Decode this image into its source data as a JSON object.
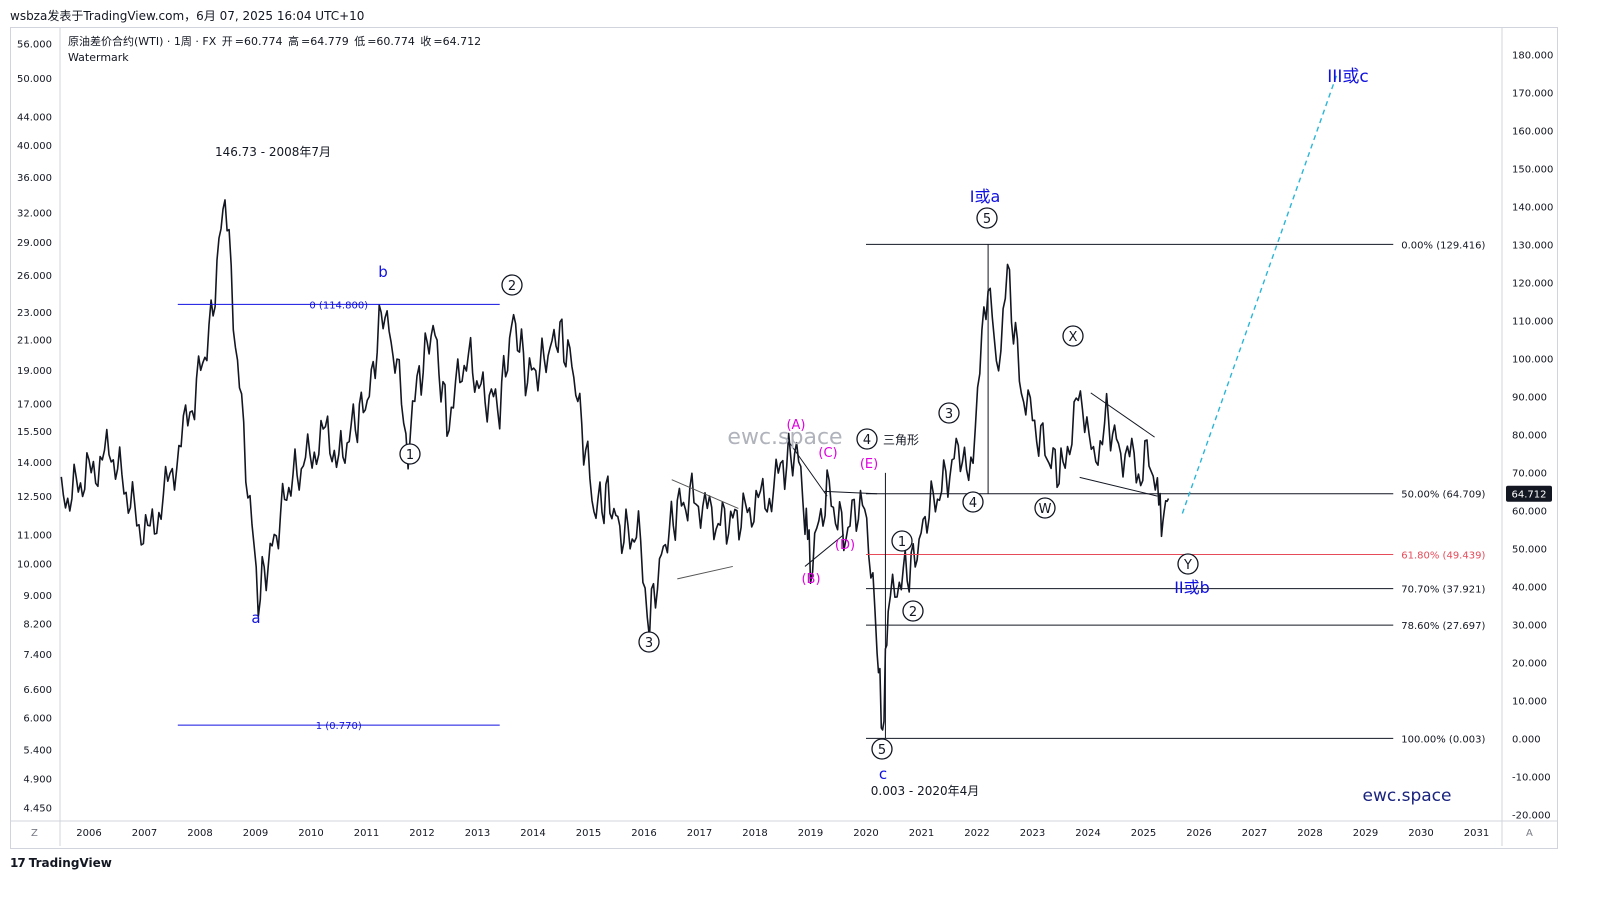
{
  "header": {
    "publisher_line": "wsbza发表于TradingView.com，6月 07, 2025 16:04 UTC+10"
  },
  "legend": {
    "symbol": "原油差价合约(WTI) · 1周 · FX",
    "open_label": "开",
    "open": "=60.774",
    "high_label": "高",
    "high": "=64.779",
    "low_label": "低",
    "low": "=60.774",
    "close_label": "收",
    "close": "=64.712",
    "watermark": "Watermark"
  },
  "footer": {
    "brand_logo": "17",
    "brand_name": "TradingView",
    "left_corner": "Z",
    "right_corner": "A"
  },
  "colors": {
    "price": "#131722",
    "wave_blue": "#1010e0",
    "magenta": "#e000e0",
    "fib_red": "#e64b5a",
    "projection": "#29b6d8",
    "price_badge": "#131722"
  },
  "chart_data": {
    "type": "line",
    "series": [
      {
        "values": [
          [
            2005.5,
            12.2
          ],
          [
            2006.0,
            13.5
          ],
          [
            2006.4,
            14.5
          ],
          [
            2006.9,
            11.4
          ],
          [
            2007.1,
            11.0
          ],
          [
            2007.5,
            13.5
          ],
          [
            2007.9,
            17.5
          ],
          [
            2008.2,
            22.0
          ],
          [
            2008.45,
            34.5
          ],
          [
            2008.6,
            23.0
          ],
          [
            2008.9,
            12.0
          ],
          [
            2009.05,
            9.0
          ],
          [
            2009.3,
            10.5
          ],
          [
            2009.6,
            13.0
          ],
          [
            2009.9,
            14.0
          ],
          [
            2010.3,
            15.5
          ],
          [
            2010.5,
            14.0
          ],
          [
            2010.8,
            16.0
          ],
          [
            2011.05,
            17.5
          ],
          [
            2011.3,
            23.5
          ],
          [
            2011.55,
            19.0
          ],
          [
            2011.75,
            14.8
          ],
          [
            2011.95,
            18.5
          ],
          [
            2012.2,
            22.0
          ],
          [
            2012.45,
            16.0
          ],
          [
            2012.8,
            20.0
          ],
          [
            2013.1,
            17.5
          ],
          [
            2013.4,
            17.0
          ],
          [
            2013.65,
            22.5
          ],
          [
            2013.9,
            18.5
          ],
          [
            2014.2,
            19.5
          ],
          [
            2014.45,
            21.5
          ],
          [
            2014.7,
            19.5
          ],
          [
            2014.95,
            14.5
          ],
          [
            2015.1,
            12.0
          ],
          [
            2015.35,
            12.5
          ],
          [
            2015.6,
            11.0
          ],
          [
            2015.9,
            11.0
          ],
          [
            2016.1,
            8.3
          ],
          [
            2016.35,
            10.5
          ],
          [
            2016.6,
            12.0
          ],
          [
            2016.9,
            12.5
          ],
          [
            2017.3,
            11.5
          ],
          [
            2017.6,
            11.5
          ],
          [
            2017.9,
            12.0
          ],
          [
            2018.3,
            12.6
          ],
          [
            2018.5,
            13.8
          ],
          [
            2018.75,
            14.5
          ],
          [
            2018.9,
            12.0
          ],
          [
            2019.0,
            10.0
          ],
          [
            2019.3,
            12.8
          ],
          [
            2019.6,
            11.0
          ],
          [
            2019.9,
            12.3
          ],
          [
            2020.05,
            11.0
          ],
          [
            2020.2,
            7.5
          ],
          [
            2020.3,
            5.7
          ],
          [
            2020.4,
            8.5
          ],
          [
            2020.6,
            9.5
          ],
          [
            2020.85,
            10.0
          ],
          [
            2021.1,
            11.8
          ],
          [
            2021.4,
            13.0
          ],
          [
            2021.7,
            14.8
          ],
          [
            2021.85,
            13.0
          ],
          [
            2022.05,
            19.0
          ],
          [
            2022.2,
            26.0
          ],
          [
            2022.35,
            19.0
          ],
          [
            2022.55,
            26.0
          ],
          [
            2022.8,
            18.0
          ],
          [
            2023.0,
            16.0
          ],
          [
            2023.3,
            14.2
          ],
          [
            2023.55,
            13.5
          ],
          [
            2023.75,
            16.5
          ],
          [
            2023.9,
            17.5
          ],
          [
            2024.1,
            13.6
          ],
          [
            2024.3,
            16.3
          ],
          [
            2024.55,
            14.8
          ],
          [
            2024.75,
            14.2
          ],
          [
            2024.95,
            13.5
          ],
          [
            2025.1,
            14.5
          ],
          [
            2025.25,
            12.5
          ],
          [
            2025.35,
            11.5
          ],
          [
            2025.45,
            12.4
          ]
        ]
      }
    ],
    "x_axis": {
      "ticks": [
        "2006",
        "2007",
        "2008",
        "2009",
        "2010",
        "2011",
        "2012",
        "2013",
        "2014",
        "2015",
        "2016",
        "2017",
        "2018",
        "2019",
        "2020",
        "2021",
        "2022",
        "2023",
        "2024",
        "2025",
        "2026",
        "2027",
        "2028",
        "2029",
        "2030",
        "2031"
      ]
    },
    "y_axis_left": {
      "scale": "log",
      "range": [
        4.3,
        59
      ],
      "ticks": [
        "4.450",
        "4.900",
        "5.400",
        "6.000",
        "6.600",
        "7.400",
        "8.200",
        "9.000",
        "10.000",
        "11.000",
        "12.500",
        "14.000",
        "15.500",
        "17.000",
        "19.000",
        "21.000",
        "23.000",
        "26.000",
        "29.000",
        "32.000",
        "36.000",
        "40.000",
        "44.000",
        "50.000",
        "56.000"
      ]
    },
    "y_axis_right": {
      "ticks": [
        "-20.000",
        "-10.000",
        "0.000",
        "10.000",
        "20.000",
        "30.000",
        "40.000",
        "50.000",
        "60.000",
        "70.000",
        "80.000",
        "90.000",
        "100.000",
        "110.000",
        "120.000",
        "130.000",
        "140.000",
        "150.000",
        "160.000",
        "170.000",
        "180.000"
      ],
      "current_price": "64.712"
    },
    "fib_right": [
      {
        "y": 28.8,
        "label": "0.00% (129.416)"
      },
      {
        "y": 12.6,
        "label": "50.00% (64.709)"
      },
      {
        "y": 10.3,
        "label": "61.80% (49.439)"
      },
      {
        "y": 9.2,
        "label": "70.70% (37.921)"
      },
      {
        "y": 8.15,
        "label": "78.60% (27.697)"
      },
      {
        "y": 5.6,
        "label": "100.00% (0.003)"
      }
    ],
    "fib_left": [
      {
        "y": 23.6,
        "label": "0 (114.800)"
      },
      {
        "y": 5.85,
        "label": "1 (0.770)"
      }
    ],
    "annotations": {
      "peak_2008": "146.73 - 2008年7月",
      "low_2020": "0.003 - 2020年4月",
      "triangle": "三角形",
      "wave_a": "a",
      "wave_b": "b",
      "wave_c": "c",
      "wave_1a": "I或a",
      "wave_2b": "II或b",
      "wave_3c": "III或c",
      "brand": "ewc.space",
      "circ_1": "1",
      "circ_2": "2",
      "circ_3": "3",
      "circ_4": "4",
      "circ_5": "5",
      "circ_X": "X",
      "circ_W": "W",
      "circ_Y": "Y",
      "tri_A": "(A)",
      "tri_B": "(B)",
      "tri_C": "(C)",
      "tri_D": "(D)",
      "tri_E": "(E)"
    }
  }
}
